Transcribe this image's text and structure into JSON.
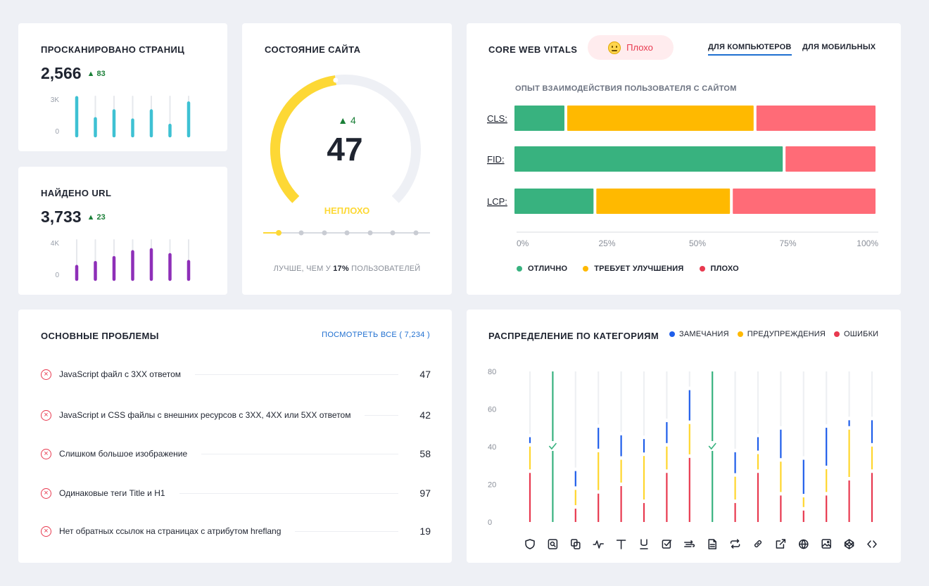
{
  "scanned": {
    "title": "Просканировано страниц",
    "value": "2,566",
    "delta": "83",
    "ticks": [
      "3K",
      "0"
    ],
    "bars": [
      2.9,
      1.3,
      1.9,
      1.2,
      1.9,
      0.8,
      2.5
    ],
    "bar_max": 3,
    "color": "#3ec1d3"
  },
  "urls": {
    "title": "Найдено URL",
    "value": "3,733",
    "delta": "23",
    "ticks": [
      "4K",
      "0"
    ],
    "bars": [
      1.3,
      1.7,
      2.2,
      2.8,
      3.0,
      2.5,
      1.8
    ],
    "bar_max": 4,
    "color": "#8e2fb8"
  },
  "health": {
    "title": "Состояние сайта",
    "score": "47",
    "score_value": 47,
    "delta": "4",
    "label": "НЕПЛОХО",
    "footer_pre": "ЛУЧШЕ, ЧЕМ У",
    "footer_pct": "17%",
    "footer_post": "ПОЛЬЗОВАТЕЛЕЙ",
    "color": "#fdd835"
  },
  "cwv": {
    "title": "Core Web Vitals",
    "badge": "Плохо",
    "tabs": [
      "Для компьютеров",
      "Для мобильных"
    ],
    "subtitle": "Опыт взаимодействия пользователя с сайтом",
    "rows": [
      {
        "label": "CLS:",
        "good": 14.5,
        "improve": 52,
        "poor": 33.5
      },
      {
        "label": "FID:",
        "good": 74.5,
        "improve": 0,
        "poor": 25.5
      },
      {
        "label": "LCP:",
        "good": 22.5,
        "improve": 37.5,
        "poor": 40
      }
    ],
    "axis": [
      "0%",
      "25%",
      "50%",
      "75%",
      "100%"
    ],
    "legend": [
      "Отлично",
      "Требует улучшения",
      "Плохо"
    ],
    "colors": {
      "good": "#38b27f",
      "improve": "#ffb900",
      "poor": "#ff6b77"
    }
  },
  "issues": {
    "title": "Основные проблемы",
    "view_all": "ПОСМОТРЕТЬ ВСЕ ( 7,234 )",
    "items": [
      {
        "text": "JavaScript файл с 3XX ответом",
        "count": "47"
      },
      {
        "text": "JavaScript и CSS файлы с внешних ресурсов с 3XX, 4XX или 5XX ответом",
        "count": "42"
      },
      {
        "text": "Слишком большое изображение",
        "count": "58"
      },
      {
        "text": "Одинаковые теги Title и H1",
        "count": "97"
      },
      {
        "text": "Нет обратных ссылок на страницах с атрибутом hreflang",
        "count": "19"
      }
    ]
  },
  "categories": {
    "title": "Распределение по категориям",
    "legend": [
      "Замечания",
      "Предупреждения",
      "Ошибки"
    ],
    "colors": {
      "notice": "#1f5eea",
      "warning": "#ffd62e",
      "error": "#e8394f",
      "ok": "#38b27f"
    },
    "yticks": [
      "80",
      "60",
      "40",
      "20",
      "0"
    ],
    "ymax": 80,
    "groups": [
      {
        "icon": "shield-icon",
        "error": 27,
        "warning": 14,
        "notice": 5
      },
      {
        "icon": "search-page-icon",
        "ok": true
      },
      {
        "icon": "copy-icon",
        "error": 8,
        "warning": 10,
        "notice": 10
      },
      {
        "icon": "pulse-icon",
        "error": 16,
        "warning": 22,
        "notice": 13
      },
      {
        "icon": "text-icon",
        "error": 20,
        "warning": 14,
        "notice": 13
      },
      {
        "icon": "underline-icon",
        "error": 11,
        "warning": 25,
        "notice": 9
      },
      {
        "icon": "checkbox-icon",
        "error": 27,
        "warning": 14,
        "notice": 13
      },
      {
        "icon": "speed-icon",
        "error": 35,
        "warning": 18,
        "notice": 18
      },
      {
        "icon": "document-icon",
        "ok": true
      },
      {
        "icon": "repeat-icon",
        "error": 11,
        "warning": 14,
        "notice": 13
      },
      {
        "icon": "link-icon",
        "error": 27,
        "warning": 10,
        "notice": 9
      },
      {
        "icon": "external-link-icon",
        "error": 15,
        "warning": 18,
        "notice": 17
      },
      {
        "icon": "globe-icon",
        "error": 7,
        "warning": 7,
        "notice": 20
      },
      {
        "icon": "image-icon",
        "error": 15,
        "warning": 14,
        "notice": 22
      },
      {
        "icon": "codepen-icon",
        "error": 23,
        "warning": 27,
        "notice": 5
      },
      {
        "icon": "code-icon",
        "error": 27,
        "warning": 14,
        "notice": 14
      }
    ]
  }
}
